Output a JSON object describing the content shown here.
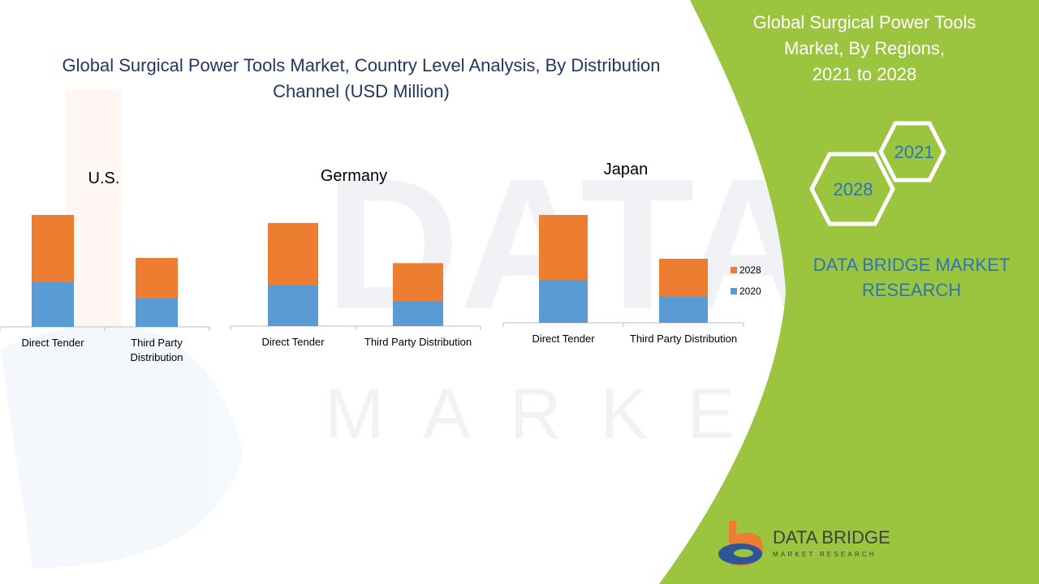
{
  "main_title": "Global Surgical Power Tools Market, Country Level Analysis, By Distribution Channel (USD Million)",
  "main_title_lines": [
    "Global Surgical Power Tools Market, Country Level Analysis, By Distribution",
    "Channel (USD Million)"
  ],
  "side_panel": {
    "title_lines": [
      "Global Surgical Power Tools",
      "Market, By Regions,",
      "2021 to 2028"
    ],
    "hex_year_a": "2021",
    "hex_year_b": "2028",
    "company_lines": [
      "DATA BRIDGE MARKET",
      "RESEARCH"
    ],
    "logo_name": "DATA BRIDGE",
    "logo_tagline": "MARKET RESEARCH",
    "logo_icon": "data-bridge-logo-icon"
  },
  "colors": {
    "series_2020": "#5b9bd5",
    "series_2028": "#ed7d31",
    "panel_green": "#9bc43f",
    "title_blue": "#1f3864",
    "company_blue": "#2e75b6"
  },
  "chart_data": [
    {
      "type": "bar",
      "stacked": true,
      "title": "U.S.",
      "categories": [
        "Direct Tender",
        "Third Party Distribution"
      ],
      "series": [
        {
          "name": "2020",
          "values": [
            55,
            35
          ]
        },
        {
          "name": "2028",
          "values": [
            83,
            50
          ]
        }
      ],
      "ylim": [
        0,
        150
      ],
      "grid": false,
      "legend": "none"
    },
    {
      "type": "bar",
      "stacked": true,
      "title": "Germany",
      "categories": [
        "Direct Tender",
        "Third Party Distribution"
      ],
      "series": [
        {
          "name": "2020",
          "values": [
            52,
            32
          ]
        },
        {
          "name": "2028",
          "values": [
            79,
            48
          ]
        }
      ],
      "ylim": [
        0,
        150
      ],
      "grid": false,
      "legend": "none"
    },
    {
      "type": "bar",
      "stacked": true,
      "title": "Japan",
      "categories": [
        "Direct Tender",
        "Third Party Distribution"
      ],
      "series": [
        {
          "name": "2020",
          "values": [
            53,
            32
          ]
        },
        {
          "name": "2028",
          "values": [
            80,
            47
          ]
        }
      ],
      "ylim": [
        0,
        150
      ],
      "grid": false,
      "legend": "right"
    }
  ]
}
